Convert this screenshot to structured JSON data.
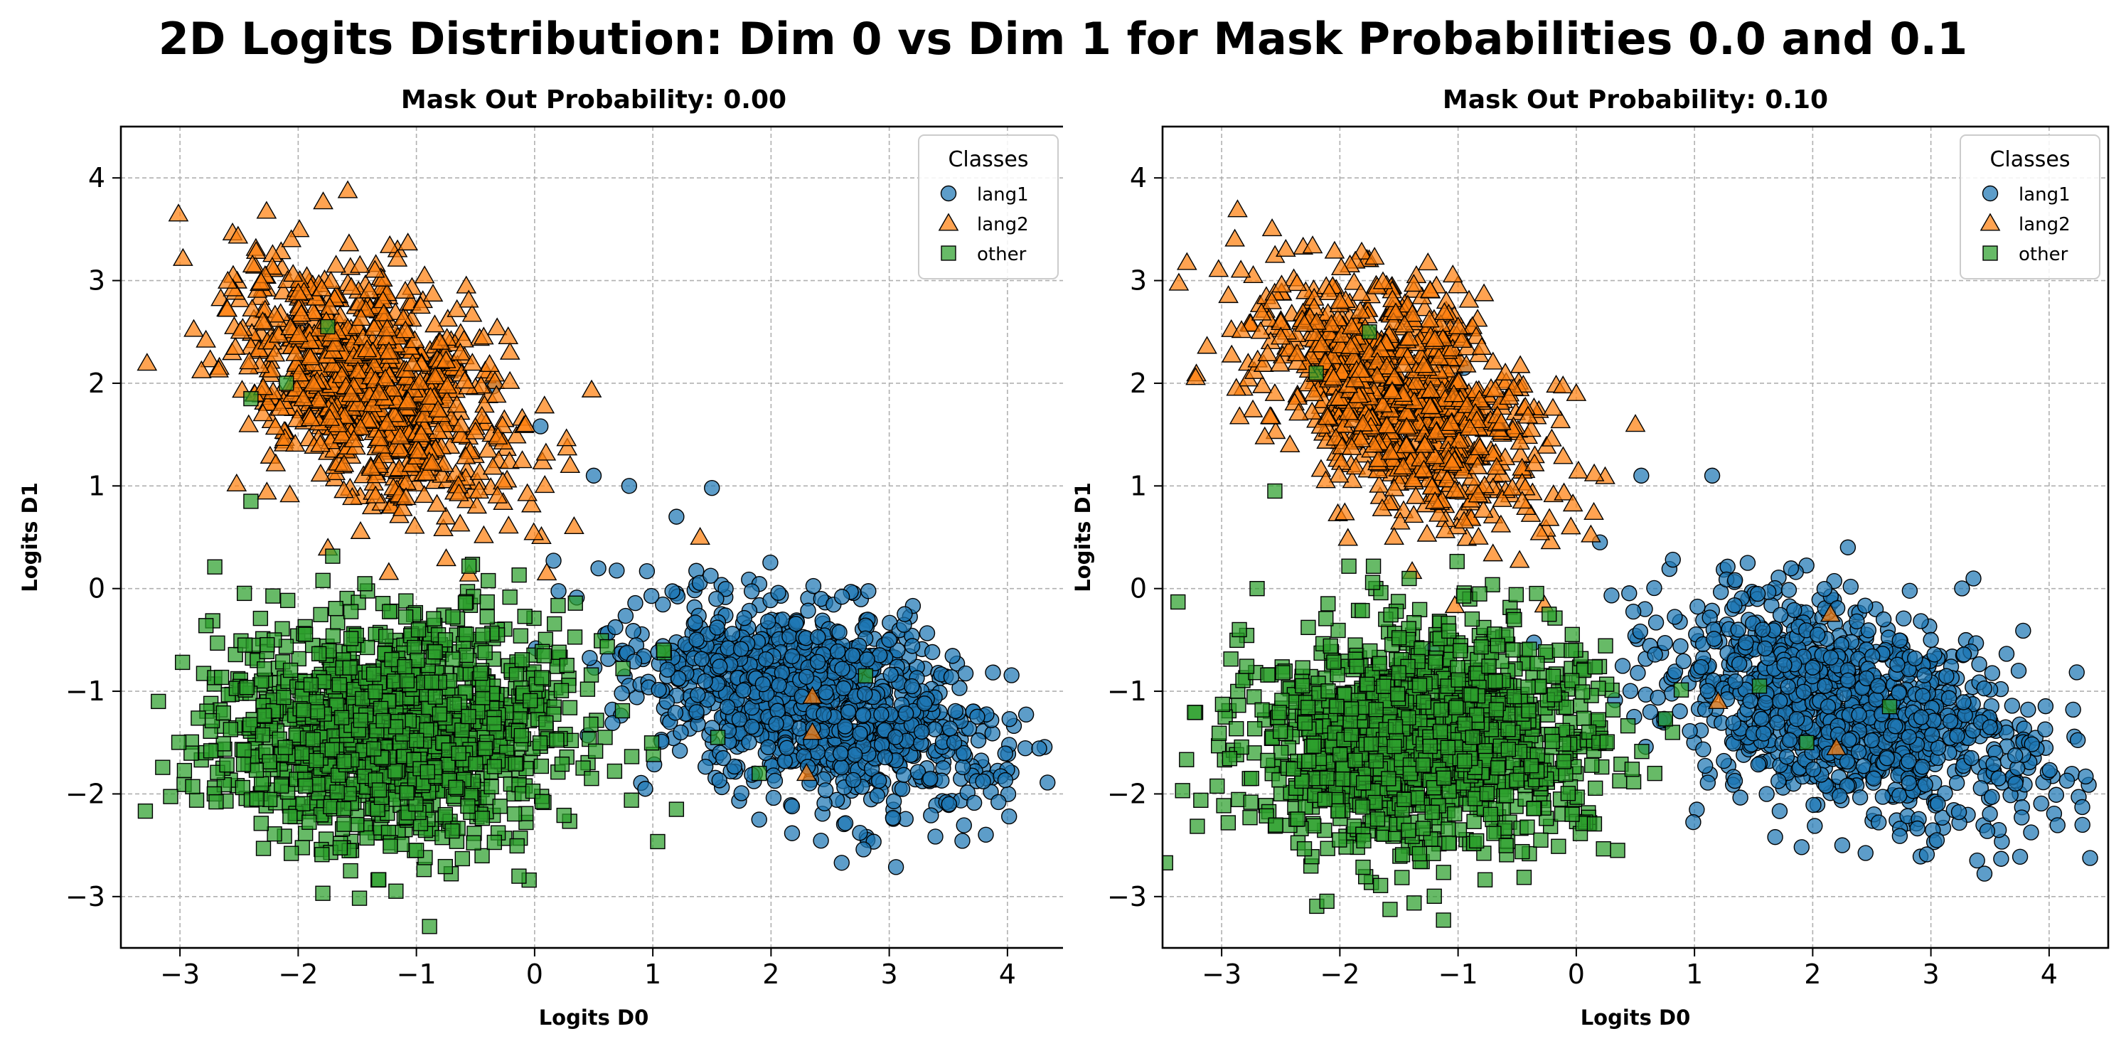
{
  "figure_title": "2D Logits Distribution: Dim 0 vs Dim 1 for Mask Probabilities 0.0 and 0.1",
  "colors": {
    "lang1": "#1f77b4",
    "lang2": "#ff7f0e",
    "other": "#2ca02c",
    "grid": "#b0b0b0",
    "edge": "#000000"
  },
  "chart_data": [
    {
      "type": "scatter",
      "title": "Mask Out Probability: 0.00",
      "xlabel": "Logits D0",
      "ylabel": "Logits D1",
      "xlim": [
        -3.5,
        4.5
      ],
      "ylim": [
        -3.5,
        4.5
      ],
      "xticks": [
        -3,
        -2,
        -1,
        0,
        1,
        2,
        3,
        4
      ],
      "yticks": [
        -3,
        -2,
        -1,
        0,
        1,
        2,
        3,
        4
      ],
      "xtick_labels": [
        "−3",
        "−2",
        "−1",
        "0",
        "1",
        "2",
        "3",
        "4"
      ],
      "ytick_labels": [
        "−3",
        "−2",
        "−1",
        "0",
        "1",
        "2",
        "3",
        "4"
      ],
      "grid": true,
      "legend": {
        "title": "Classes",
        "position": "top-right"
      },
      "series": [
        {
          "name": "lang1",
          "marker": "circle",
          "center": [
            2.4,
            -1.1
          ],
          "spread": [
            0.75,
            0.45
          ],
          "n": 1100,
          "points": [
            [
              1.9,
              -2.25
            ],
            [
              0.05,
              1.58
            ],
            [
              -0.35,
              1.97
            ],
            [
              0.8,
              1.0
            ],
            [
              1.5,
              0.98
            ],
            [
              2.6,
              -0.08
            ],
            [
              3.0,
              -0.5
            ],
            [
              3.55,
              -1.5
            ],
            [
              0.5,
              1.1
            ],
            [
              1.2,
              0.7
            ]
          ]
        },
        {
          "name": "lang2",
          "marker": "triangle",
          "center": [
            -1.4,
            2.0
          ],
          "spread": [
            0.6,
            0.55
          ],
          "n": 900,
          "points": [
            [
              -2.0,
              2.88
            ],
            [
              -1.8,
              2.92
            ],
            [
              -1.4,
              2.9
            ],
            [
              -2.3,
              2.6
            ],
            [
              -0.8,
              2.4
            ],
            [
              0.3,
              1.2
            ],
            [
              1.4,
              0.5
            ],
            [
              2.3,
              -1.8
            ],
            [
              2.35,
              -1.05
            ],
            [
              2.35,
              -1.4
            ]
          ]
        },
        {
          "name": "other",
          "marker": "square",
          "center": [
            -1.2,
            -1.4
          ],
          "spread": [
            0.75,
            0.55
          ],
          "n": 1300,
          "points": [
            [
              -2.4,
              1.85
            ],
            [
              -2.45,
              -0.55
            ],
            [
              -2.4,
              0.85
            ],
            [
              -1.0,
              -2.55
            ],
            [
              1.2,
              -2.15
            ],
            [
              1.55,
              -1.45
            ],
            [
              2.8,
              -0.85
            ],
            [
              1.9,
              -1.8
            ],
            [
              -2.1,
              2.0
            ],
            [
              -1.75,
              2.55
            ]
          ]
        }
      ]
    },
    {
      "type": "scatter",
      "title": "Mask Out Probability: 0.10",
      "xlabel": "Logits D0",
      "ylabel": "Logits D1",
      "xlim": [
        -3.5,
        4.5
      ],
      "ylim": [
        -3.5,
        4.5
      ],
      "xticks": [
        -3,
        -2,
        -1,
        0,
        1,
        2,
        3,
        4
      ],
      "yticks": [
        -3,
        -2,
        -1,
        0,
        1,
        2,
        3,
        4
      ],
      "xtick_labels": [
        "−3",
        "−2",
        "−1",
        "0",
        "1",
        "2",
        "3",
        "4"
      ],
      "ytick_labels": [
        "−3",
        "−2",
        "−1",
        "0",
        "1",
        "2",
        "3",
        "4"
      ],
      "grid": true,
      "legend": {
        "title": "Classes",
        "position": "top-right"
      },
      "series": [
        {
          "name": "lang1",
          "marker": "circle",
          "center": [
            2.3,
            -1.2
          ],
          "spread": [
            0.8,
            0.5
          ],
          "n": 1050,
          "points": [
            [
              2.25,
              -2.5
            ],
            [
              -0.95,
              2.15
            ],
            [
              0.55,
              1.1
            ],
            [
              1.15,
              1.1
            ],
            [
              3.0,
              -0.5
            ],
            [
              3.5,
              -1.35
            ],
            [
              2.6,
              -0.3
            ],
            [
              1.45,
              0.25
            ],
            [
              0.2,
              0.45
            ],
            [
              3.05,
              -2.45
            ]
          ]
        },
        {
          "name": "lang2",
          "marker": "triangle",
          "center": [
            -1.5,
            1.9
          ],
          "spread": [
            0.6,
            0.55
          ],
          "n": 950,
          "points": [
            [
              -2.55,
              1.9
            ],
            [
              -2.5,
              2.45
            ],
            [
              -1.0,
              2.55
            ],
            [
              -0.8,
              2.35
            ],
            [
              -0.6,
              2.1
            ],
            [
              0.0,
              1.9
            ],
            [
              0.5,
              1.6
            ],
            [
              2.2,
              -1.55
            ],
            [
              2.15,
              -0.25
            ],
            [
              1.2,
              -1.1
            ]
          ]
        },
        {
          "name": "other",
          "marker": "square",
          "center": [
            -1.3,
            -1.5
          ],
          "spread": [
            0.75,
            0.55
          ],
          "n": 1350,
          "points": [
            [
              -2.85,
              -0.4
            ],
            [
              -2.7,
              0.0
            ],
            [
              -2.2,
              2.1
            ],
            [
              -1.75,
              2.5
            ],
            [
              0.35,
              -2.55
            ],
            [
              -0.3,
              -2.45
            ],
            [
              1.95,
              -1.5
            ],
            [
              2.65,
              -1.15
            ],
            [
              1.55,
              -0.95
            ],
            [
              -2.55,
              0.95
            ]
          ]
        }
      ]
    }
  ]
}
